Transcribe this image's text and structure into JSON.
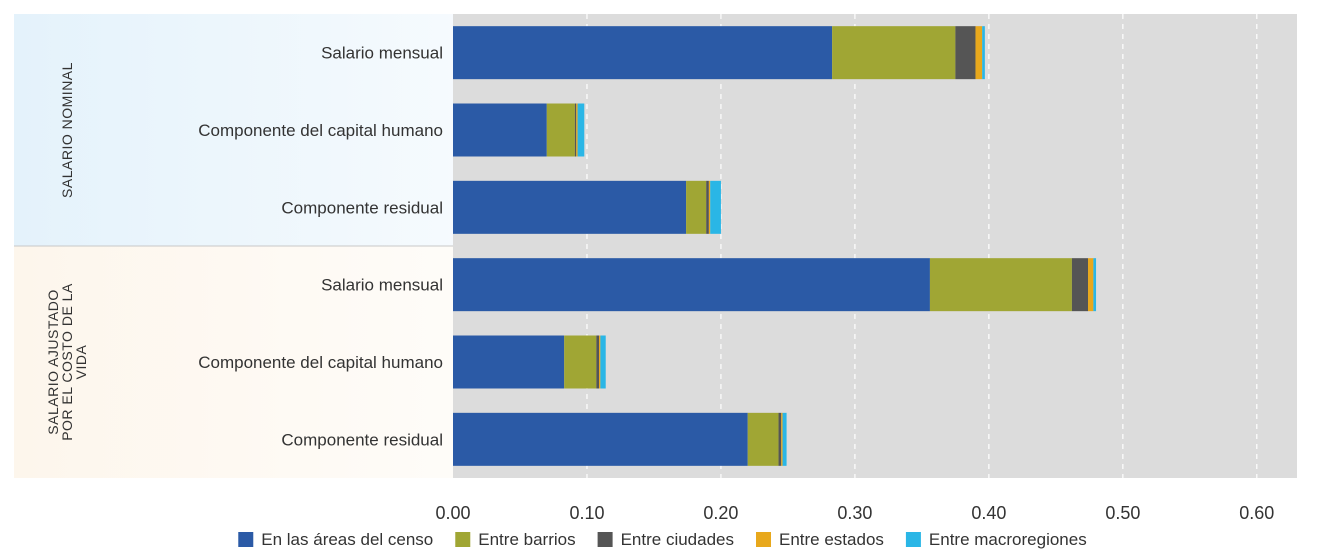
{
  "chart_data": {
    "type": "bar",
    "orientation": "horizontal",
    "stacked": true,
    "groups": [
      {
        "label": "SALARIO NOMINAL",
        "color": "#e4f2fb",
        "rows": [
          0,
          1,
          2
        ]
      },
      {
        "label": "SALARIO AJUSTADO POR EL COSTO DE LA VIDA",
        "label_lines": [
          "SALARIO AJUSTADO",
          "POR EL COSTO DE LA",
          "VIDA"
        ],
        "color": "#fdf6ec",
        "rows": [
          3,
          4,
          5
        ]
      }
    ],
    "categories": [
      "Salario mensual",
      "Componente del capital humano",
      "Componente residual",
      "Salario mensual",
      "Componente del capital humano",
      "Componente residual"
    ],
    "series": [
      {
        "name": "En las áreas del censo",
        "color": "#2b5aa6",
        "values": [
          0.283,
          0.07,
          0.174,
          0.356,
          0.083,
          0.22
        ]
      },
      {
        "name": "Entre barrios",
        "color": "#a0a634",
        "values": [
          0.092,
          0.021,
          0.015,
          0.106,
          0.024,
          0.023
        ]
      },
      {
        "name": "Entre ciudades",
        "color": "#555555",
        "values": [
          0.015,
          0.001,
          0.002,
          0.012,
          0.002,
          0.002
        ]
      },
      {
        "name": "Entre estados",
        "color": "#e8a81c",
        "values": [
          0.005,
          0.001,
          0.001,
          0.004,
          0.001,
          0.001
        ]
      },
      {
        "name": "Entre macroregiones",
        "color": "#2ab6e6",
        "values": [
          0.002,
          0.005,
          0.008,
          0.002,
          0.004,
          0.003
        ]
      }
    ],
    "xlim": [
      0,
      0.63
    ],
    "xticks": [
      "0.00",
      "0.10",
      "0.20",
      "0.30",
      "0.40",
      "0.50",
      "0.60"
    ],
    "xtick_values": [
      0,
      0.1,
      0.2,
      0.3,
      0.4,
      0.5,
      0.6
    ],
    "grid": "vertical-dashed",
    "plot_background": "#dcdcdc",
    "legend": "bottom",
    "title": "",
    "xlabel": "",
    "ylabel": ""
  }
}
